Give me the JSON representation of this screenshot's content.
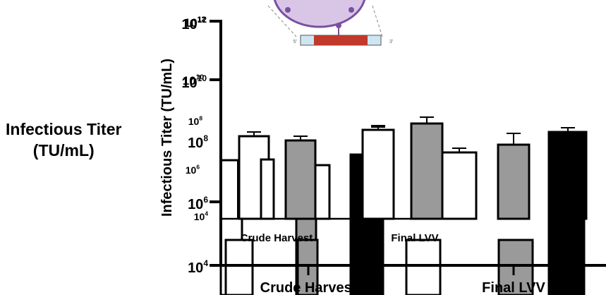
{
  "chart_data": {
    "type": "bar",
    "scale": "log",
    "ylabel": "Infectious Titer (TU/mL)",
    "side_label": [
      "Infectious Titer",
      "(TU/mL)"
    ],
    "categories": [
      "Crude Harvest",
      "Final LVV"
    ],
    "inset_categories": [
      "Crude Harvest",
      "Final LVV"
    ],
    "ylim": [
      10000,
      1000000000000
    ],
    "y_ticks": [
      {
        "base": "10",
        "exp": "4",
        "value": 10000
      },
      {
        "base": "10",
        "exp": "6",
        "value": 1000000
      },
      {
        "base": "10",
        "exp": "8",
        "value": 100000000
      },
      {
        "base": "10",
        "exp": "10",
        "value": 10000000000
      },
      {
        "base": "10",
        "exp": "12",
        "value": 1000000000000
      }
    ],
    "overlay_ticks": [
      {
        "base": "10",
        "exp": "8",
        "value": 100000000
      },
      {
        "base": "10",
        "exp": "6",
        "value": 1000000
      }
    ],
    "back_ticks": [
      {
        "base": "10",
        "exp": "12"
      },
      {
        "base": "10",
        "exp": "10"
      },
      {
        "base": "10",
        "exp": "8"
      },
      {
        "base": "10",
        "exp": "6"
      },
      {
        "base": "10",
        "exp": "4"
      }
    ],
    "series": [
      {
        "fill": "#ffffff",
        "values": [
          150000000,
          30000000
        ],
        "errors": [
          20000000,
          6000000
        ]
      },
      {
        "fill": "#9a9a9a",
        "values": [
          100000000,
          55000000
        ],
        "errors": [
          8000000,
          45000000
        ]
      },
      {
        "fill": "#000000",
        "values": [
          300000000,
          250000000
        ],
        "errors": [
          40000000,
          15000000
        ]
      }
    ],
    "back_series": [
      {
        "fill": "#ffffff",
        "values": [
          1200000,
          100000000
        ]
      },
      {
        "fill": "#9a9a9a",
        "values": [
          900000,
          400000000
        ]
      },
      {
        "fill": "#000000",
        "values": [
          1000000000,
          1000000000
        ]
      }
    ]
  },
  "colors": {
    "axis": "#000000",
    "white_bar": "#ffffff",
    "gray_bar": "#9a9a9a",
    "black_bar": "#000000",
    "graphic_purple": "#7b4fa0"
  }
}
